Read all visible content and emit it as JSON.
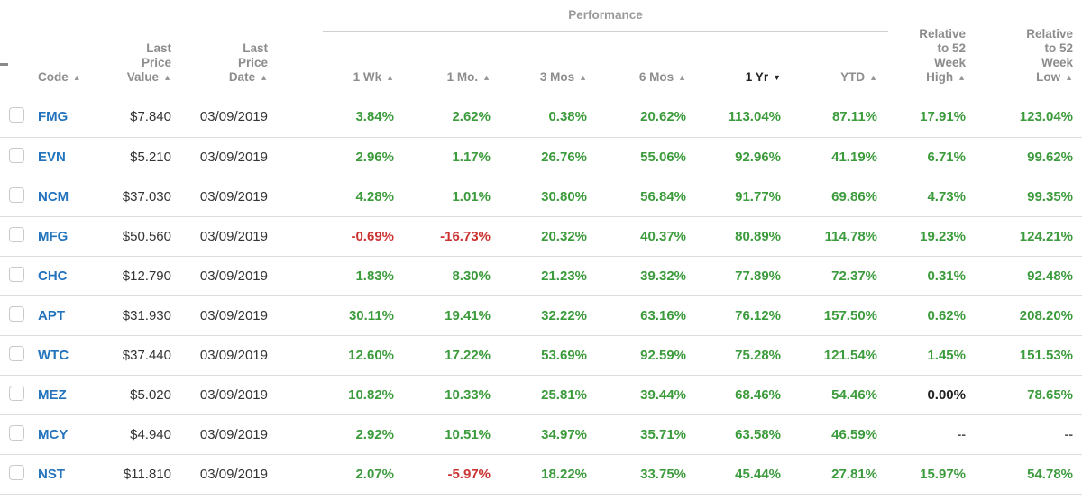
{
  "icons": {
    "sort_asc": "▲",
    "sort_desc": "▼"
  },
  "colors": {
    "positive": "#3c9b3c",
    "negative": "#cc3333",
    "code_link": "#2373bd",
    "header_text": "#8d8d8d",
    "active_header_text": "#222222",
    "body_text": "#333333",
    "neutral_value": "#222222",
    "missing_value": "#555555",
    "divider": "#dddddd"
  },
  "table": {
    "group_header": {
      "label": "Performance"
    },
    "columns": [
      {
        "id": "select",
        "label_lines": [],
        "align": "left",
        "sort": null
      },
      {
        "id": "code",
        "label_lines": [
          "Code"
        ],
        "align": "left",
        "sort": "asc"
      },
      {
        "id": "last_price_value",
        "label_lines": [
          "Last",
          "Price",
          "Value"
        ],
        "align": "right",
        "sort": "asc"
      },
      {
        "id": "last_price_date",
        "label_lines": [
          "Last",
          "Price",
          "Date"
        ],
        "align": "right",
        "sort": "asc"
      },
      {
        "id": "perf_1wk",
        "label_lines": [
          "1 Wk"
        ],
        "align": "right",
        "sort": "asc"
      },
      {
        "id": "perf_1mo",
        "label_lines": [
          "1 Mo."
        ],
        "align": "right",
        "sort": "asc"
      },
      {
        "id": "perf_3mos",
        "label_lines": [
          "3 Mos"
        ],
        "align": "right",
        "sort": "asc"
      },
      {
        "id": "perf_6mos",
        "label_lines": [
          "6 Mos"
        ],
        "align": "right",
        "sort": "asc"
      },
      {
        "id": "perf_1yr",
        "label_lines": [
          "1 Yr"
        ],
        "align": "right",
        "sort": "desc",
        "active": true
      },
      {
        "id": "perf_ytd",
        "label_lines": [
          "YTD"
        ],
        "align": "right",
        "sort": "asc"
      },
      {
        "id": "rel_52wk_high",
        "label_lines": [
          "Relative",
          "to 52",
          "Week",
          "High"
        ],
        "align": "right",
        "sort": "asc"
      },
      {
        "id": "rel_52wk_low",
        "label_lines": [
          "Relative",
          "to 52",
          "Week",
          "Low"
        ],
        "align": "right",
        "sort": "asc"
      }
    ],
    "rows": [
      {
        "code": "FMG",
        "last_price_value": "$7.840",
        "last_price_date": "03/09/2019",
        "perf_1wk": "3.84%",
        "perf_1mo": "2.62%",
        "perf_3mos": "0.38%",
        "perf_6mos": "20.62%",
        "perf_1yr": "113.04%",
        "perf_ytd": "87.11%",
        "rel_52wk_high": "17.91%",
        "rel_52wk_low": "123.04%"
      },
      {
        "code": "EVN",
        "last_price_value": "$5.210",
        "last_price_date": "03/09/2019",
        "perf_1wk": "2.96%",
        "perf_1mo": "1.17%",
        "perf_3mos": "26.76%",
        "perf_6mos": "55.06%",
        "perf_1yr": "92.96%",
        "perf_ytd": "41.19%",
        "rel_52wk_high": "6.71%",
        "rel_52wk_low": "99.62%"
      },
      {
        "code": "NCM",
        "last_price_value": "$37.030",
        "last_price_date": "03/09/2019",
        "perf_1wk": "4.28%",
        "perf_1mo": "1.01%",
        "perf_3mos": "30.80%",
        "perf_6mos": "56.84%",
        "perf_1yr": "91.77%",
        "perf_ytd": "69.86%",
        "rel_52wk_high": "4.73%",
        "rel_52wk_low": "99.35%"
      },
      {
        "code": "MFG",
        "last_price_value": "$50.560",
        "last_price_date": "03/09/2019",
        "perf_1wk": "-0.69%",
        "perf_1mo": "-16.73%",
        "perf_3mos": "20.32%",
        "perf_6mos": "40.37%",
        "perf_1yr": "80.89%",
        "perf_ytd": "114.78%",
        "rel_52wk_high": "19.23%",
        "rel_52wk_low": "124.21%"
      },
      {
        "code": "CHC",
        "last_price_value": "$12.790",
        "last_price_date": "03/09/2019",
        "perf_1wk": "1.83%",
        "perf_1mo": "8.30%",
        "perf_3mos": "21.23%",
        "perf_6mos": "39.32%",
        "perf_1yr": "77.89%",
        "perf_ytd": "72.37%",
        "rel_52wk_high": "0.31%",
        "rel_52wk_low": "92.48%"
      },
      {
        "code": "APT",
        "last_price_value": "$31.930",
        "last_price_date": "03/09/2019",
        "perf_1wk": "30.11%",
        "perf_1mo": "19.41%",
        "perf_3mos": "32.22%",
        "perf_6mos": "63.16%",
        "perf_1yr": "76.12%",
        "perf_ytd": "157.50%",
        "rel_52wk_high": "0.62%",
        "rel_52wk_low": "208.20%"
      },
      {
        "code": "WTC",
        "last_price_value": "$37.440",
        "last_price_date": "03/09/2019",
        "perf_1wk": "12.60%",
        "perf_1mo": "17.22%",
        "perf_3mos": "53.69%",
        "perf_6mos": "92.59%",
        "perf_1yr": "75.28%",
        "perf_ytd": "121.54%",
        "rel_52wk_high": "1.45%",
        "rel_52wk_low": "151.53%"
      },
      {
        "code": "MEZ",
        "last_price_value": "$5.020",
        "last_price_date": "03/09/2019",
        "perf_1wk": "10.82%",
        "perf_1mo": "10.33%",
        "perf_3mos": "25.81%",
        "perf_6mos": "39.44%",
        "perf_1yr": "68.46%",
        "perf_ytd": "54.46%",
        "rel_52wk_high": "0.00%",
        "rel_52wk_low": "78.65%"
      },
      {
        "code": "MCY",
        "last_price_value": "$4.940",
        "last_price_date": "03/09/2019",
        "perf_1wk": "2.92%",
        "perf_1mo": "10.51%",
        "perf_3mos": "34.97%",
        "perf_6mos": "35.71%",
        "perf_1yr": "63.58%",
        "perf_ytd": "46.59%",
        "rel_52wk_high": "--",
        "rel_52wk_low": "--"
      },
      {
        "code": "NST",
        "last_price_value": "$11.810",
        "last_price_date": "03/09/2019",
        "perf_1wk": "2.07%",
        "perf_1mo": "-5.97%",
        "perf_3mos": "18.22%",
        "perf_6mos": "33.75%",
        "perf_1yr": "45.44%",
        "perf_ytd": "27.81%",
        "rel_52wk_high": "15.97%",
        "rel_52wk_low": "54.78%"
      }
    ]
  }
}
